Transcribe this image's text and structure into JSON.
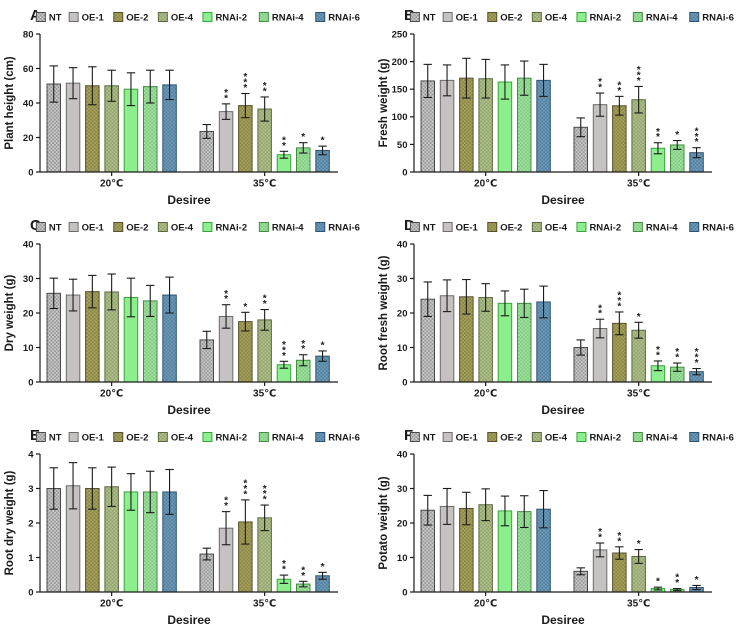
{
  "figure": {
    "xlabel": "Desiree",
    "groups": [
      "20℃",
      "35℃"
    ],
    "axis_color": "#1b1b1b",
    "legend": [
      {
        "label": "NT",
        "fill": "#cbcbcb",
        "pattern": "#989898",
        "stroke": "#4a4a4a"
      },
      {
        "label": "OE-1",
        "fill": "#c6c2c2",
        "pattern": null,
        "stroke": "#6b6b6b"
      },
      {
        "label": "OE-2",
        "fill": "#a7a25b",
        "pattern": "#8b8648",
        "stroke": "#55522d"
      },
      {
        "label": "OE-4",
        "fill": "#b1bf8a",
        "pattern": "#93a56e",
        "stroke": "#5c6a41"
      },
      {
        "label": "RNAi-2",
        "fill": "#8dee8d",
        "pattern": null,
        "stroke": "#3aa23a"
      },
      {
        "label": "RNAi-4",
        "fill": "#9fdf9f",
        "pattern": "#82cd82",
        "stroke": "#3f8f3f"
      },
      {
        "label": "RNAi-6",
        "fill": "#6c9cba",
        "pattern": "#54809e",
        "stroke": "#2f5272"
      }
    ]
  },
  "chart_data": [
    {
      "type": "bar",
      "panel": "A",
      "title": "",
      "ylabel": "Plant height (cm)",
      "xlabel": "Desiree",
      "ylim": [
        0,
        80
      ],
      "yticks": [
        0,
        20,
        40,
        60,
        80
      ],
      "categories": [
        "20℃",
        "35℃"
      ],
      "series": [
        {
          "name": "NT",
          "values": [
            51,
            23.5
          ],
          "errors": [
            10.5,
            4
          ],
          "sig": [
            "",
            ""
          ]
        },
        {
          "name": "OE-1",
          "values": [
            51.5,
            35
          ],
          "errors": [
            9,
            4.5
          ],
          "sig": [
            "",
            "**"
          ]
        },
        {
          "name": "OE-2",
          "values": [
            50,
            38.5
          ],
          "errors": [
            11,
            7
          ],
          "sig": [
            "",
            "***"
          ]
        },
        {
          "name": "OE-4",
          "values": [
            50,
            36.5
          ],
          "errors": [
            9,
            7
          ],
          "sig": [
            "",
            "**"
          ]
        },
        {
          "name": "RNAi-2",
          "values": [
            48,
            10
          ],
          "errors": [
            9.5,
            2
          ],
          "sig": [
            "",
            "**"
          ]
        },
        {
          "name": "RNAi-4",
          "values": [
            49.5,
            14
          ],
          "errors": [
            9.5,
            3
          ],
          "sig": [
            "",
            "*"
          ]
        },
        {
          "name": "RNAi-6",
          "values": [
            50.5,
            12.5
          ],
          "errors": [
            8.5,
            2.5
          ],
          "sig": [
            "",
            "*"
          ]
        }
      ]
    },
    {
      "type": "bar",
      "panel": "B",
      "title": "",
      "ylabel": "Fresh weight (g)",
      "xlabel": "Desiree",
      "ylim": [
        0,
        250
      ],
      "yticks": [
        0,
        50,
        100,
        150,
        200,
        250
      ],
      "categories": [
        "20℃",
        "35℃"
      ],
      "series": [
        {
          "name": "NT",
          "values": [
            165,
            81
          ],
          "errors": [
            30,
            17
          ],
          "sig": [
            "",
            ""
          ]
        },
        {
          "name": "OE-1",
          "values": [
            166,
            122
          ],
          "errors": [
            28,
            21
          ],
          "sig": [
            "",
            "**"
          ]
        },
        {
          "name": "OE-2",
          "values": [
            170,
            120
          ],
          "errors": [
            36,
            17
          ],
          "sig": [
            "",
            "**"
          ]
        },
        {
          "name": "OE-4",
          "values": [
            169,
            131
          ],
          "errors": [
            35,
            24
          ],
          "sig": [
            "",
            "***"
          ]
        },
        {
          "name": "RNAi-2",
          "values": [
            163,
            43
          ],
          "errors": [
            31,
            10
          ],
          "sig": [
            "",
            "**"
          ]
        },
        {
          "name": "RNAi-4",
          "values": [
            170,
            49
          ],
          "errors": [
            31,
            8
          ],
          "sig": [
            "",
            "*"
          ]
        },
        {
          "name": "RNAi-6",
          "values": [
            166,
            35
          ],
          "errors": [
            29,
            9
          ],
          "sig": [
            "",
            "***"
          ]
        }
      ]
    },
    {
      "type": "bar",
      "panel": "C",
      "title": "",
      "ylabel": "Dry weight (g)",
      "xlabel": "Desiree",
      "ylim": [
        0,
        40
      ],
      "yticks": [
        0,
        10,
        20,
        30,
        40
      ],
      "categories": [
        "20℃",
        "35℃"
      ],
      "series": [
        {
          "name": "NT",
          "values": [
            25.7,
            12.2
          ],
          "errors": [
            4.4,
            2.5
          ],
          "sig": [
            "",
            ""
          ]
        },
        {
          "name": "OE-1",
          "values": [
            25.2,
            19
          ],
          "errors": [
            4.6,
            3.4
          ],
          "sig": [
            "",
            "**"
          ]
        },
        {
          "name": "OE-2",
          "values": [
            26.2,
            17.5
          ],
          "errors": [
            4.7,
            2.7
          ],
          "sig": [
            "",
            "*"
          ]
        },
        {
          "name": "OE-4",
          "values": [
            26.1,
            18
          ],
          "errors": [
            5.2,
            3
          ],
          "sig": [
            "",
            "**"
          ]
        },
        {
          "name": "RNAi-2",
          "values": [
            24.5,
            5
          ],
          "errors": [
            5.6,
            1
          ],
          "sig": [
            "",
            "***"
          ]
        },
        {
          "name": "RNAi-4",
          "values": [
            23.5,
            6.3
          ],
          "errors": [
            4.5,
            1.6
          ],
          "sig": [
            "",
            "**"
          ]
        },
        {
          "name": "RNAi-6",
          "values": [
            25.2,
            7.5
          ],
          "errors": [
            5.2,
            1.5
          ],
          "sig": [
            "",
            "*"
          ]
        }
      ]
    },
    {
      "type": "bar",
      "panel": "D",
      "title": "",
      "ylabel": "Root fresh weight (g)",
      "xlabel": "Desiree",
      "ylim": [
        0,
        40
      ],
      "yticks": [
        0,
        10,
        20,
        30,
        40
      ],
      "categories": [
        "20℃",
        "35℃"
      ],
      "series": [
        {
          "name": "NT",
          "values": [
            24,
            10
          ],
          "errors": [
            5,
            2.2
          ],
          "sig": [
            "",
            ""
          ]
        },
        {
          "name": "OE-1",
          "values": [
            25,
            15.5
          ],
          "errors": [
            4.6,
            2.7
          ],
          "sig": [
            "",
            "**"
          ]
        },
        {
          "name": "OE-2",
          "values": [
            24.7,
            17
          ],
          "errors": [
            5,
            3.3
          ],
          "sig": [
            "",
            "***"
          ]
        },
        {
          "name": "OE-4",
          "values": [
            24.5,
            15
          ],
          "errors": [
            4,
            2.3
          ],
          "sig": [
            "",
            "*"
          ]
        },
        {
          "name": "RNAi-2",
          "values": [
            22.8,
            4.7
          ],
          "errors": [
            3.6,
            1.4
          ],
          "sig": [
            "",
            "**"
          ]
        },
        {
          "name": "RNAi-4",
          "values": [
            22.8,
            4.3
          ],
          "errors": [
            4.1,
            1.2
          ],
          "sig": [
            "",
            "**"
          ]
        },
        {
          "name": "RNAi-6",
          "values": [
            23.2,
            3
          ],
          "errors": [
            4.6,
            0.9
          ],
          "sig": [
            "",
            "***"
          ]
        }
      ]
    },
    {
      "type": "bar",
      "panel": "E",
      "title": "",
      "ylabel": "Root dry weight (g)",
      "xlabel": "Desiree",
      "ylim": [
        0,
        4
      ],
      "yticks": [
        0,
        1,
        2,
        3,
        4
      ],
      "categories": [
        "20℃",
        "35℃"
      ],
      "series": [
        {
          "name": "NT",
          "values": [
            3.0,
            1.1
          ],
          "errors": [
            0.6,
            0.17
          ],
          "sig": [
            "",
            ""
          ]
        },
        {
          "name": "OE-1",
          "values": [
            3.08,
            1.85
          ],
          "errors": [
            0.67,
            0.48
          ],
          "sig": [
            "",
            "**"
          ]
        },
        {
          "name": "OE-2",
          "values": [
            3.0,
            2.03
          ],
          "errors": [
            0.6,
            0.64
          ],
          "sig": [
            "",
            "***"
          ]
        },
        {
          "name": "OE-4",
          "values": [
            3.05,
            2.15
          ],
          "errors": [
            0.57,
            0.37
          ],
          "sig": [
            "",
            "***"
          ]
        },
        {
          "name": "RNAi-2",
          "values": [
            2.9,
            0.37
          ],
          "errors": [
            0.53,
            0.12
          ],
          "sig": [
            "",
            "**"
          ]
        },
        {
          "name": "RNAi-4",
          "values": [
            2.9,
            0.23
          ],
          "errors": [
            0.6,
            0.08
          ],
          "sig": [
            "",
            "**"
          ]
        },
        {
          "name": "RNAi-6",
          "values": [
            2.9,
            0.47
          ],
          "errors": [
            0.65,
            0.1
          ],
          "sig": [
            "",
            "*"
          ]
        }
      ]
    },
    {
      "type": "bar",
      "panel": "F",
      "title": "",
      "ylabel": "Potato weight (g)",
      "xlabel": "Desiree",
      "ylim": [
        0,
        40
      ],
      "yticks": [
        0,
        10,
        20,
        30,
        40
      ],
      "categories": [
        "20℃",
        "35℃"
      ],
      "series": [
        {
          "name": "NT",
          "values": [
            23.7,
            6
          ],
          "errors": [
            4.3,
            1
          ],
          "sig": [
            "",
            ""
          ]
        },
        {
          "name": "OE-1",
          "values": [
            24.8,
            12.2
          ],
          "errors": [
            5.2,
            2
          ],
          "sig": [
            "",
            "**"
          ]
        },
        {
          "name": "OE-2",
          "values": [
            24.2,
            11.3
          ],
          "errors": [
            4.7,
            1.8
          ],
          "sig": [
            "",
            "**"
          ]
        },
        {
          "name": "OE-4",
          "values": [
            25.3,
            10.3
          ],
          "errors": [
            4.6,
            2
          ],
          "sig": [
            "",
            "*"
          ]
        },
        {
          "name": "RNAi-2",
          "values": [
            23.5,
            1
          ],
          "errors": [
            4.3,
            0.4
          ],
          "sig": [
            "",
            "*"
          ]
        },
        {
          "name": "RNAi-4",
          "values": [
            23.3,
            0.7
          ],
          "errors": [
            4.6,
            0.3
          ],
          "sig": [
            "",
            "**"
          ]
        },
        {
          "name": "RNAi-6",
          "values": [
            24,
            1.3
          ],
          "errors": [
            5.4,
            0.6
          ],
          "sig": [
            "",
            "*"
          ]
        }
      ]
    }
  ]
}
